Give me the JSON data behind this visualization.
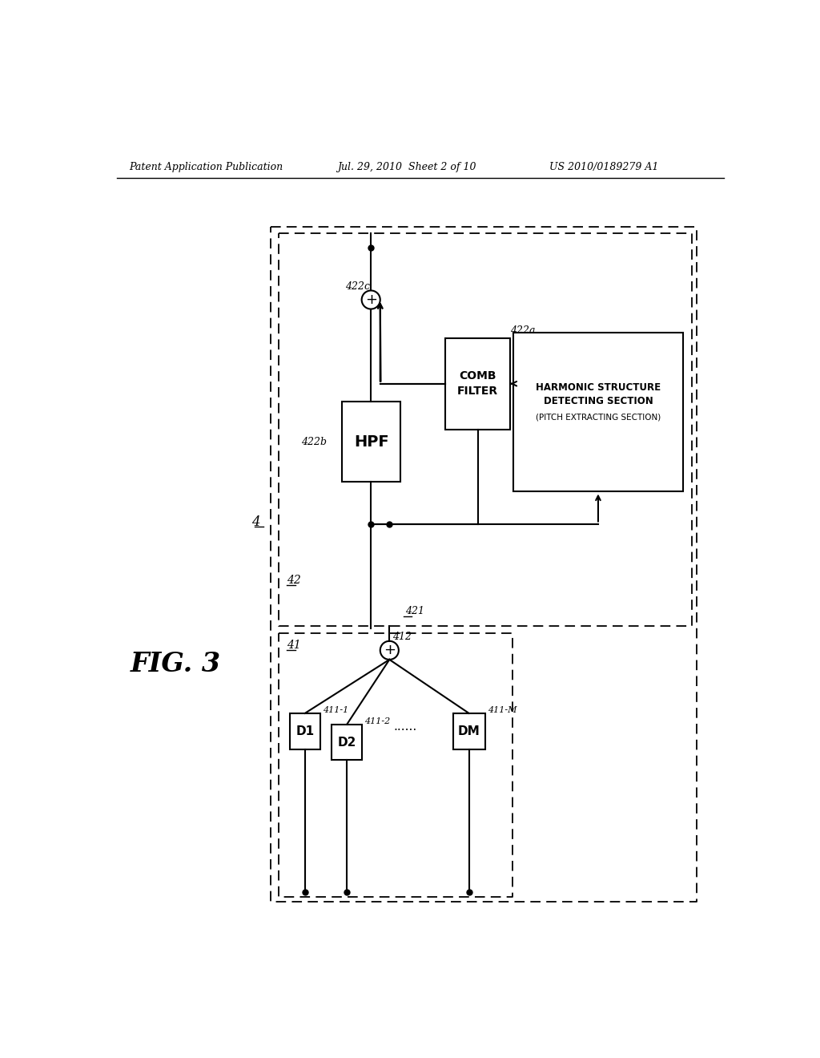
{
  "title_left": "Patent Application Publication",
  "title_mid": "Jul. 29, 2010  Sheet 2 of 10",
  "title_right": "US 2010/0189279 A1",
  "fig_label": "FIG. 3",
  "bg_color": "#ffffff",
  "line_color": "#000000",
  "header_fontsize": 9,
  "fig_label_fontsize": 24
}
